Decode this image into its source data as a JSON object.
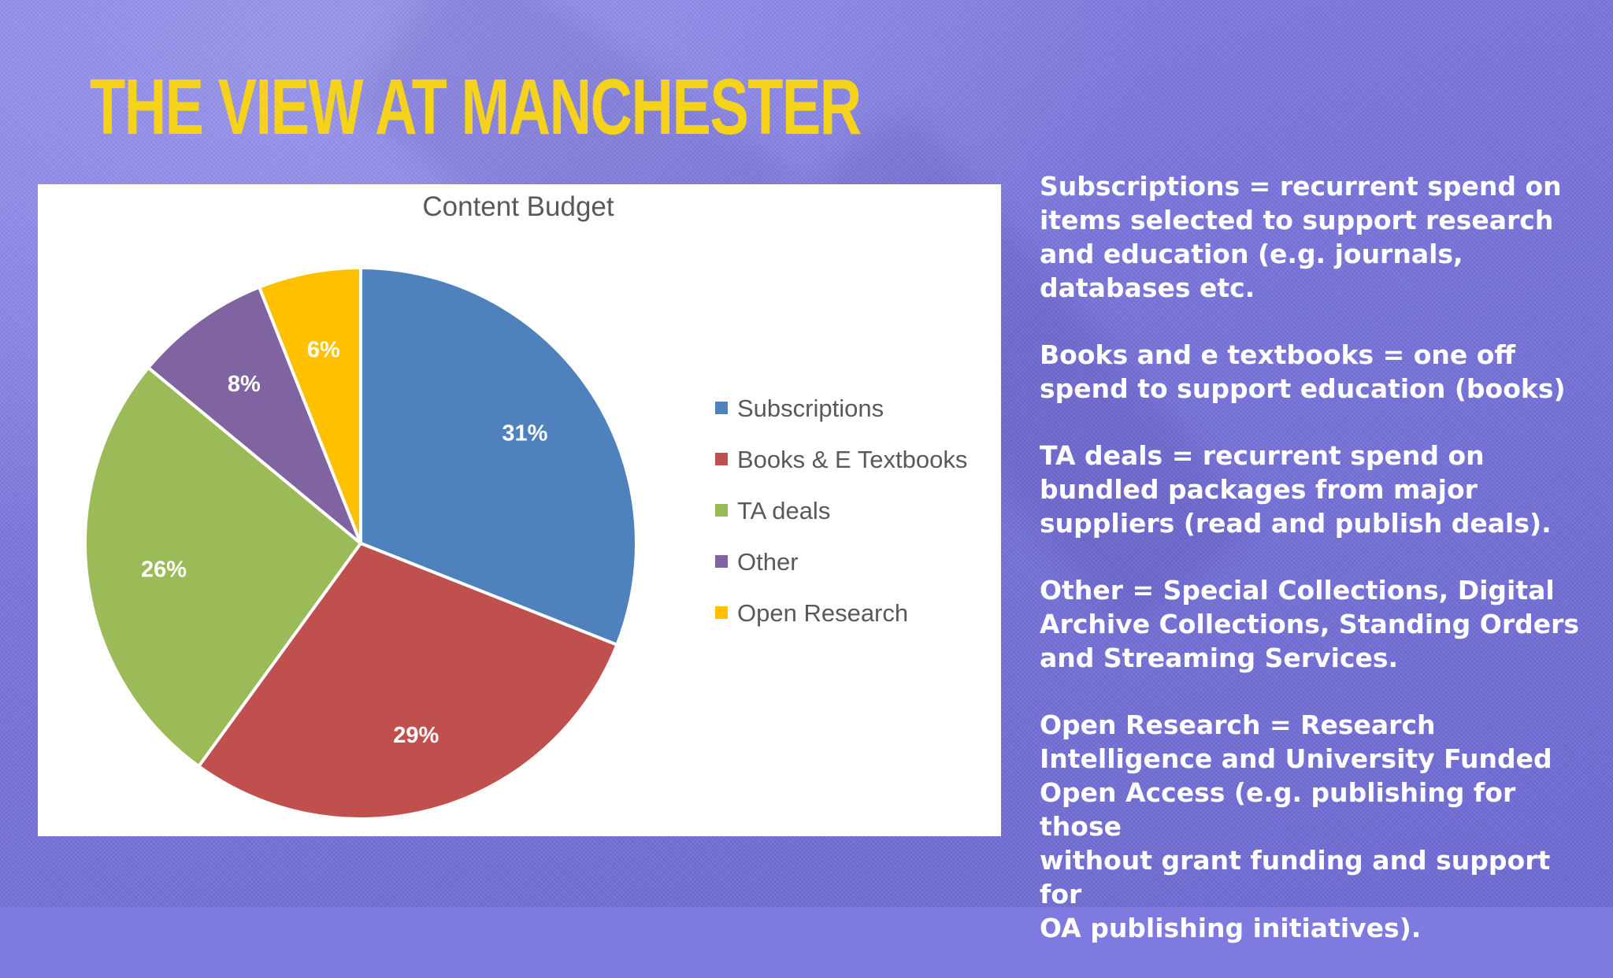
{
  "title": "THE VIEW AT MANCHESTER",
  "chart_data": {
    "type": "pie",
    "title": "Content Budget",
    "categories": [
      "Subscriptions",
      "Books & E Textbooks",
      "TA deals",
      "Other",
      "Open Research"
    ],
    "values": [
      31,
      29,
      26,
      8,
      6
    ],
    "labels": [
      "31%",
      "29%",
      "26%",
      "8%",
      "6%"
    ],
    "colors": [
      "#4f81bd",
      "#c0504d",
      "#9bbb59",
      "#8064a2",
      "#ffc000"
    ],
    "legend_position": "right"
  },
  "notes": [
    "Subscriptions = recurrent spend on\nitems selected to support research\nand education (e.g. journals,\ndatabases etc.",
    "Books and e textbooks = one off\nspend to support education (books)",
    "TA deals = recurrent spend on\nbundled packages from major\nsuppliers (read and publish deals).",
    "Other = Special Collections, Digital\nArchive Collections, Standing Orders\nand Streaming Services.",
    "Open Research = Research\nIntelligence and University Funded\nOpen Access (e.g. publishing for those\nwithout grant funding and support for\nOA publishing initiatives)."
  ]
}
